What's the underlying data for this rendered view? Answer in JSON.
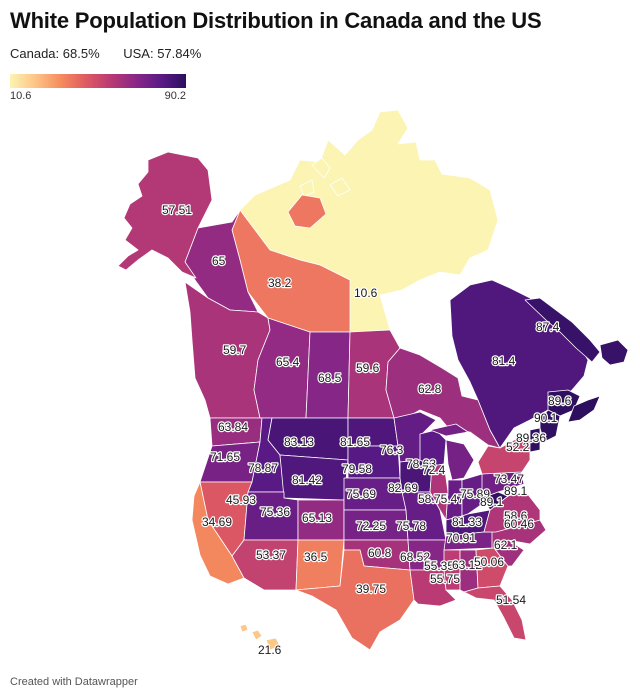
{
  "title": "White Population Distribution in Canada and the US",
  "summary": {
    "canada": "Canada: 68.5%",
    "usa": "USA: 57.84%"
  },
  "legend": {
    "min": "10.6",
    "max": "90.2",
    "min_value": 10.6,
    "max_value": 90.2
  },
  "footer": "Created with Datawrapper",
  "regions": [
    {
      "name": "Alaska",
      "value": 57.51
    },
    {
      "name": "Yukon",
      "value": 65
    },
    {
      "name": "Northwest Territories",
      "value": 38.2
    },
    {
      "name": "Nunavut",
      "value": 10.6
    },
    {
      "name": "British Columbia",
      "value": 59.7
    },
    {
      "name": "Alberta",
      "value": 65.4
    },
    {
      "name": "Saskatchewan",
      "value": 68.5
    },
    {
      "name": "Manitoba",
      "value": 59.6
    },
    {
      "name": "Ontario",
      "value": 62.8
    },
    {
      "name": "Quebec",
      "value": 81.4
    },
    {
      "name": "Newfoundland and Labrador",
      "value": 87.4
    },
    {
      "name": "New Brunswick",
      "value": 89.6
    },
    {
      "name": "Nova Scotia",
      "value": 90.1
    },
    {
      "name": "Washington",
      "value": 63.84
    },
    {
      "name": "Oregon",
      "value": 71.65
    },
    {
      "name": "Idaho",
      "value": 78.87
    },
    {
      "name": "Montana",
      "value": 83.13
    },
    {
      "name": "North Dakota",
      "value": 81.65
    },
    {
      "name": "Minnesota",
      "value": 76.3
    },
    {
      "name": "Wisconsin",
      "value": 78.63
    },
    {
      "name": "Michigan",
      "value": 72.4
    },
    {
      "name": "South Dakota",
      "value": 79.58
    },
    {
      "name": "Wyoming",
      "value": 81.42
    },
    {
      "name": "Nevada",
      "value": 45.93
    },
    {
      "name": "Utah",
      "value": 75.36
    },
    {
      "name": "Colorado",
      "value": 65.13
    },
    {
      "name": "Nebraska",
      "value": 75.69
    },
    {
      "name": "Iowa",
      "value": 82.69
    },
    {
      "name": "Illinois",
      "value": 58.75
    },
    {
      "name": "Indiana",
      "value": 75.47
    },
    {
      "name": "Ohio",
      "value": 75.89
    },
    {
      "name": "Kansas",
      "value": 72.25
    },
    {
      "name": "Missouri",
      "value": 75.78
    },
    {
      "name": "Kentucky",
      "value": 81.33
    },
    {
      "name": "West Virginia",
      "value": 89.1
    },
    {
      "name": "Virginia",
      "value": 58.6
    },
    {
      "name": "California",
      "value": 34.69
    },
    {
      "name": "Arizona",
      "value": 53.37
    },
    {
      "name": "New Mexico",
      "value": 36.5
    },
    {
      "name": "Oklahoma",
      "value": 60.8
    },
    {
      "name": "Arkansas",
      "value": 68.52
    },
    {
      "name": "Tennessee",
      "value": 70.91
    },
    {
      "name": "North Carolina",
      "value": 60.46
    },
    {
      "name": "South Carolina",
      "value": 62.1
    },
    {
      "name": "Texas",
      "value": 39.75
    },
    {
      "name": "Louisiana",
      "value": 55.75
    },
    {
      "name": "Mississippi",
      "value": 55.35
    },
    {
      "name": "Alabama",
      "value": 63.12
    },
    {
      "name": "Georgia",
      "value": 50.06
    },
    {
      "name": "Florida",
      "value": 51.54
    },
    {
      "name": "Pennsylvania",
      "value": 73.47
    },
    {
      "name": "New York",
      "value": 52.2
    },
    {
      "name": "Vermont",
      "value": 89.1
    },
    {
      "name": "Maine",
      "value": 89.36
    },
    {
      "name": "Hawaii",
      "value": 21.6
    }
  ]
}
